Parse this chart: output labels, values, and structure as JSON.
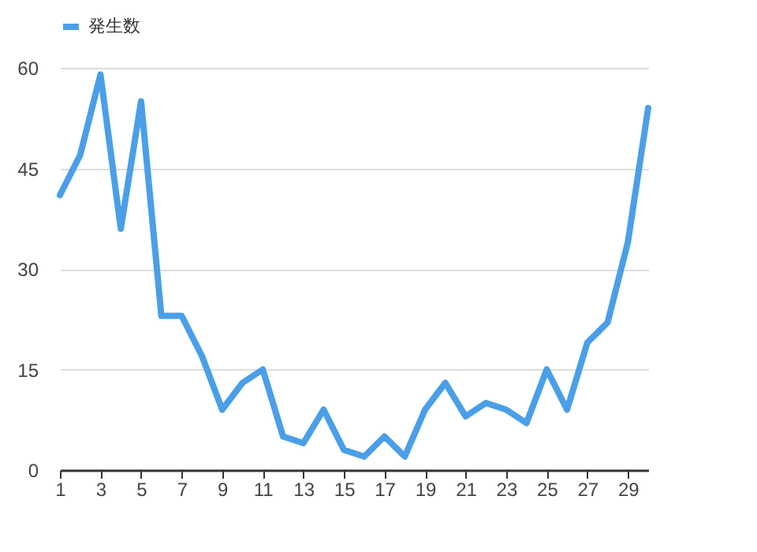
{
  "chart_data": {
    "type": "line",
    "x": [
      1,
      2,
      3,
      4,
      5,
      6,
      7,
      8,
      9,
      10,
      11,
      12,
      13,
      14,
      15,
      16,
      17,
      18,
      19,
      20,
      21,
      22,
      23,
      24,
      25,
      26,
      27,
      28,
      29,
      30
    ],
    "series": [
      {
        "name": "発生数",
        "color": "#4a9fe8",
        "values": [
          41,
          47,
          59,
          36,
          55,
          23,
          23,
          17,
          9,
          13,
          15,
          5,
          4,
          9,
          3,
          2,
          5,
          2,
          9,
          13,
          8,
          10,
          9,
          7,
          15,
          9,
          19,
          22,
          34,
          54
        ]
      }
    ],
    "xlim": [
      1,
      30
    ],
    "xticks": [
      1,
      3,
      5,
      7,
      9,
      11,
      13,
      15,
      17,
      19,
      21,
      23,
      25,
      27,
      29
    ],
    "ylim": [
      0,
      60
    ],
    "yticks": [
      0,
      15,
      30,
      45,
      60
    ],
    "grid": "y",
    "legend": "top",
    "marker": "none",
    "line_style": "solid"
  }
}
